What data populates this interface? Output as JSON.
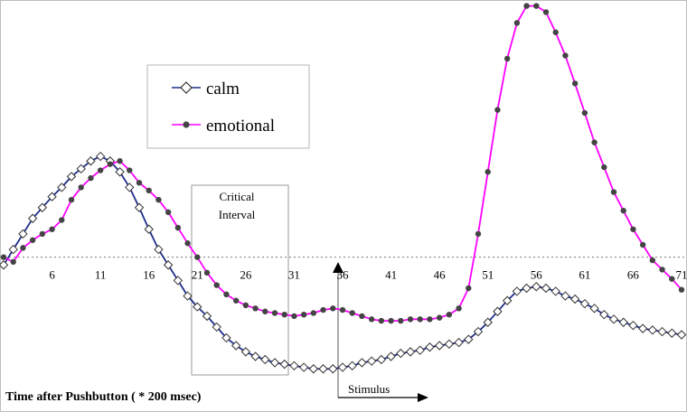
{
  "chart_data": {
    "type": "line",
    "xlabel": "Time after Pushbutton ( * 200 msec)",
    "ylabel": "",
    "x_ticks": [
      "6",
      "11",
      "16",
      "21",
      "26",
      "31",
      "36",
      "41",
      "46",
      "51",
      "56",
      "61",
      "66",
      "71"
    ],
    "xlim": [
      1,
      71
    ],
    "ylim": [
      -0.8,
      1.6
    ],
    "grid": false,
    "zero_line": "dotted",
    "legend_position": "top-left",
    "series": [
      {
        "name": "calm",
        "color": "#1f2d8a",
        "marker": "diamond",
        "values": [
          -0.05,
          0.05,
          0.15,
          0.25,
          0.32,
          0.39,
          0.45,
          0.52,
          0.57,
          0.62,
          0.65,
          0.62,
          0.55,
          0.45,
          0.32,
          0.18,
          0.05,
          -0.05,
          -0.15,
          -0.25,
          -0.32,
          -0.38,
          -0.45,
          -0.52,
          -0.57,
          -0.61,
          -0.64,
          -0.66,
          -0.68,
          -0.69,
          -0.7,
          -0.71,
          -0.72,
          -0.72,
          -0.72,
          -0.71,
          -0.7,
          -0.68,
          -0.67,
          -0.66,
          -0.64,
          -0.62,
          -0.61,
          -0.6,
          -0.58,
          -0.57,
          -0.56,
          -0.55,
          -0.53,
          -0.48,
          -0.42,
          -0.35,
          -0.28,
          -0.22,
          -0.2,
          -0.19,
          -0.2,
          -0.22,
          -0.25,
          -0.27,
          -0.3,
          -0.33,
          -0.37,
          -0.4,
          -0.42,
          -0.44,
          -0.46,
          -0.47,
          -0.48,
          -0.49,
          -0.5
        ]
      },
      {
        "name": "emotional",
        "color": "#ff00ff",
        "marker": "circle",
        "values": [
          0.0,
          -0.03,
          0.06,
          0.11,
          0.15,
          0.18,
          0.24,
          0.37,
          0.45,
          0.51,
          0.56,
          0.6,
          0.62,
          0.56,
          0.48,
          0.43,
          0.37,
          0.29,
          0.19,
          0.09,
          0.0,
          -0.1,
          -0.18,
          -0.24,
          -0.28,
          -0.31,
          -0.33,
          -0.35,
          -0.36,
          -0.37,
          -0.38,
          -0.37,
          -0.36,
          -0.34,
          -0.33,
          -0.34,
          -0.36,
          -0.38,
          -0.4,
          -0.41,
          -0.41,
          -0.41,
          -0.4,
          -0.4,
          -0.4,
          -0.39,
          -0.37,
          -0.33,
          -0.2,
          0.15,
          0.55,
          0.95,
          1.28,
          1.51,
          1.62,
          1.62,
          1.58,
          1.45,
          1.3,
          1.12,
          0.93,
          0.74,
          0.58,
          0.42,
          0.3,
          0.18,
          0.08,
          -0.02,
          -0.08,
          -0.14,
          -0.21
        ]
      }
    ],
    "annotations": {
      "critical_interval_label": [
        "Critical",
        "Interval"
      ],
      "stimulus_label": "Stimulus"
    }
  }
}
